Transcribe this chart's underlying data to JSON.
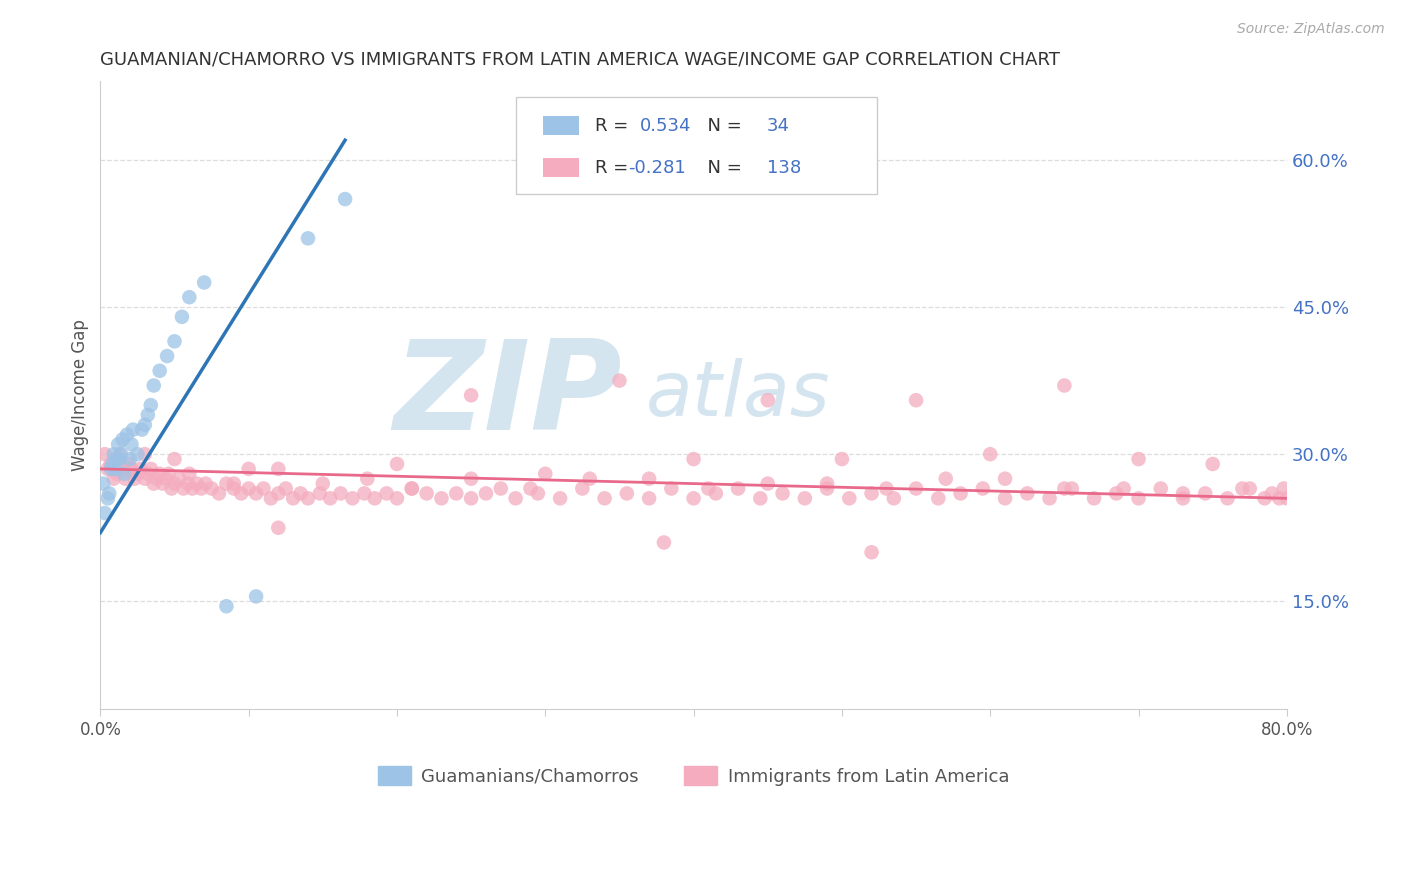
{
  "title": "GUAMANIAN/CHAMORRO VS IMMIGRANTS FROM LATIN AMERICA WAGE/INCOME GAP CORRELATION CHART",
  "source": "Source: ZipAtlas.com",
  "ylabel": "Wage/Income Gap",
  "right_yticks": [
    "60.0%",
    "45.0%",
    "30.0%",
    "15.0%"
  ],
  "right_ytick_vals": [
    0.6,
    0.45,
    0.3,
    0.15
  ],
  "xlim": [
    0.0,
    0.8
  ],
  "ylim": [
    0.04,
    0.68
  ],
  "color_blue": "#9DC3E6",
  "color_blue_line": "#2E75B6",
  "color_pink": "#F4ACBE",
  "color_pink_line": "#E8698A",
  "color_legend_text": "#4472C4",
  "watermark_color": "#D5E5F0",
  "gridline_color": "#DDDDDD",
  "axis_color": "#CCCCCC",
  "text_color": "#555555",
  "blue_x": [
    0.002,
    0.003,
    0.005,
    0.006,
    0.007,
    0.008,
    0.009,
    0.01,
    0.011,
    0.012,
    0.013,
    0.014,
    0.015,
    0.016,
    0.018,
    0.02,
    0.021,
    0.022,
    0.025,
    0.028,
    0.03,
    0.032,
    0.034,
    0.036,
    0.04,
    0.045,
    0.05,
    0.055,
    0.06,
    0.07,
    0.085,
    0.105,
    0.14,
    0.165
  ],
  "blue_y": [
    0.27,
    0.24,
    0.255,
    0.26,
    0.285,
    0.29,
    0.3,
    0.285,
    0.295,
    0.31,
    0.295,
    0.3,
    0.315,
    0.28,
    0.32,
    0.295,
    0.31,
    0.325,
    0.3,
    0.325,
    0.33,
    0.34,
    0.35,
    0.37,
    0.385,
    0.4,
    0.415,
    0.44,
    0.46,
    0.475,
    0.145,
    0.155,
    0.52,
    0.56
  ],
  "pink_x": [
    0.003,
    0.005,
    0.007,
    0.009,
    0.01,
    0.011,
    0.013,
    0.015,
    0.017,
    0.019,
    0.021,
    0.023,
    0.025,
    0.027,
    0.03,
    0.032,
    0.034,
    0.036,
    0.038,
    0.04,
    0.042,
    0.044,
    0.046,
    0.048,
    0.05,
    0.053,
    0.056,
    0.059,
    0.062,
    0.065,
    0.068,
    0.071,
    0.075,
    0.08,
    0.085,
    0.09,
    0.095,
    0.1,
    0.105,
    0.11,
    0.115,
    0.12,
    0.125,
    0.13,
    0.135,
    0.14,
    0.148,
    0.155,
    0.162,
    0.17,
    0.178,
    0.185,
    0.193,
    0.2,
    0.21,
    0.22,
    0.23,
    0.24,
    0.25,
    0.26,
    0.27,
    0.28,
    0.295,
    0.31,
    0.325,
    0.34,
    0.355,
    0.37,
    0.385,
    0.4,
    0.415,
    0.43,
    0.445,
    0.46,
    0.475,
    0.49,
    0.505,
    0.52,
    0.535,
    0.55,
    0.565,
    0.58,
    0.595,
    0.61,
    0.625,
    0.64,
    0.655,
    0.67,
    0.685,
    0.7,
    0.715,
    0.73,
    0.745,
    0.76,
    0.775,
    0.785,
    0.79,
    0.795,
    0.798,
    0.8,
    0.03,
    0.06,
    0.09,
    0.12,
    0.15,
    0.18,
    0.21,
    0.25,
    0.29,
    0.33,
    0.37,
    0.41,
    0.45,
    0.49,
    0.53,
    0.57,
    0.61,
    0.65,
    0.69,
    0.73,
    0.77,
    0.05,
    0.1,
    0.2,
    0.3,
    0.4,
    0.5,
    0.6,
    0.7,
    0.75,
    0.35,
    0.45,
    0.55,
    0.25,
    0.65,
    0.12,
    0.38,
    0.52
  ],
  "pink_y": [
    0.3,
    0.285,
    0.29,
    0.275,
    0.295,
    0.28,
    0.3,
    0.285,
    0.275,
    0.29,
    0.285,
    0.275,
    0.28,
    0.285,
    0.275,
    0.28,
    0.285,
    0.27,
    0.275,
    0.28,
    0.27,
    0.275,
    0.28,
    0.265,
    0.27,
    0.275,
    0.265,
    0.27,
    0.265,
    0.27,
    0.265,
    0.27,
    0.265,
    0.26,
    0.27,
    0.265,
    0.26,
    0.265,
    0.26,
    0.265,
    0.255,
    0.26,
    0.265,
    0.255,
    0.26,
    0.255,
    0.26,
    0.255,
    0.26,
    0.255,
    0.26,
    0.255,
    0.26,
    0.255,
    0.265,
    0.26,
    0.255,
    0.26,
    0.255,
    0.26,
    0.265,
    0.255,
    0.26,
    0.255,
    0.265,
    0.255,
    0.26,
    0.255,
    0.265,
    0.255,
    0.26,
    0.265,
    0.255,
    0.26,
    0.255,
    0.265,
    0.255,
    0.26,
    0.255,
    0.265,
    0.255,
    0.26,
    0.265,
    0.255,
    0.26,
    0.255,
    0.265,
    0.255,
    0.26,
    0.255,
    0.265,
    0.255,
    0.26,
    0.255,
    0.265,
    0.255,
    0.26,
    0.255,
    0.265,
    0.255,
    0.3,
    0.28,
    0.27,
    0.285,
    0.27,
    0.275,
    0.265,
    0.275,
    0.265,
    0.275,
    0.275,
    0.265,
    0.27,
    0.27,
    0.265,
    0.275,
    0.275,
    0.265,
    0.265,
    0.26,
    0.265,
    0.295,
    0.285,
    0.29,
    0.28,
    0.295,
    0.295,
    0.3,
    0.295,
    0.29,
    0.375,
    0.355,
    0.355,
    0.36,
    0.37,
    0.225,
    0.21,
    0.2
  ],
  "blue_trend_x0": 0.0,
  "blue_trend_x1": 0.165,
  "pink_trend_x0": 0.0,
  "pink_trend_x1": 0.8,
  "blue_trend_y0": 0.22,
  "blue_trend_y1": 0.62,
  "pink_trend_y0": 0.285,
  "pink_trend_y1": 0.255
}
